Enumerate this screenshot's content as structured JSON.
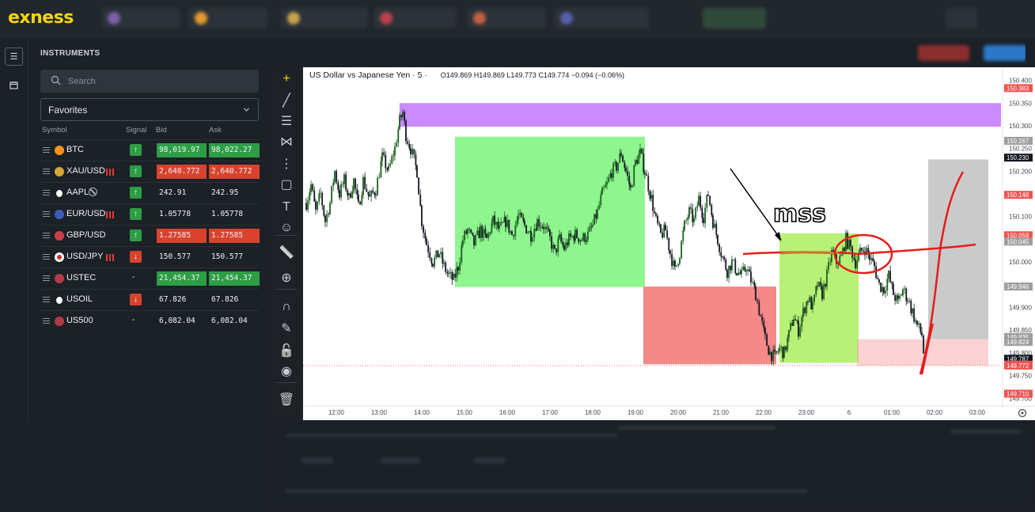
{
  "brand": {
    "logo_text": "exness",
    "logo_color": "#f5d50a"
  },
  "colors": {
    "up": "#26a69a",
    "down": "#ef5350",
    "green_cell": "#2e9e46",
    "red_cell": "#d9432e",
    "bg": "#1c2127"
  },
  "sidebar_strip": {
    "items": [
      "list-icon",
      "calendar-icon"
    ]
  },
  "instruments_panel": {
    "title": "INSTRUMENTS",
    "search": {
      "placeholder": "Search",
      "value": ""
    },
    "filter": {
      "selected": "Favorites"
    },
    "columns": {
      "symbol": "Symbol",
      "signal": "Signal",
      "bid": "Bid",
      "ask": "Ask"
    },
    "rows": [
      {
        "symbol": "BTC",
        "icon": "bitcoin-icon",
        "signal": "up",
        "signal_text": "↑",
        "bid": "98,019.97",
        "ask": "98,022.27",
        "bid_color": "green",
        "ask_color": "green",
        "flags": ""
      },
      {
        "symbol": "XAU/USD",
        "icon": "gold-icon",
        "signal": "up",
        "signal_text": "↑",
        "bid": "2,640.772",
        "ask": "2,640.772",
        "bid_color": "red",
        "ask_color": "red",
        "flags": "bars"
      },
      {
        "symbol": "AAPL",
        "icon": "apple-icon",
        "signal": "up",
        "signal_text": "↑",
        "bid": "242.91",
        "ask": "242.95",
        "bid_color": "none",
        "ask_color": "none",
        "flags": "closed"
      },
      {
        "symbol": "EUR/USD",
        "icon": "eurusd-icon",
        "signal": "up",
        "signal_text": "↑",
        "bid": "1.05778",
        "ask": "1.05778",
        "bid_color": "none",
        "ask_color": "none",
        "flags": "bars"
      },
      {
        "symbol": "GBP/USD",
        "icon": "gbpusd-icon",
        "signal": "up",
        "signal_text": "↑",
        "bid": "1.27585",
        "ask": "1.27585",
        "bid_color": "red",
        "ask_color": "red",
        "flags": ""
      },
      {
        "symbol": "USD/JPY",
        "icon": "usdjpy-icon",
        "signal": "down",
        "signal_text": "↓",
        "bid": "150.577",
        "ask": "150.577",
        "bid_color": "none",
        "ask_color": "none",
        "flags": "bars"
      },
      {
        "symbol": "USTEC",
        "icon": "us-flag-icon",
        "signal": "none",
        "signal_text": "-",
        "bid": "21,454.37",
        "ask": "21,454.37",
        "bid_color": "green",
        "ask_color": "green",
        "flags": ""
      },
      {
        "symbol": "USOIL",
        "icon": "oil-drop-icon",
        "signal": "down",
        "signal_text": "↓",
        "bid": "67.826",
        "ask": "67.826",
        "bid_color": "none",
        "ask_color": "none",
        "flags": ""
      },
      {
        "symbol": "US500",
        "icon": "us-flag-icon",
        "signal": "none",
        "signal_text": "-",
        "bid": "6,082.04",
        "ask": "6,082.04",
        "bid_color": "none",
        "ask_color": "none",
        "flags": ""
      }
    ]
  },
  "drawing_tools": [
    "crosshair-icon",
    "trend-line-icon",
    "fib-icon",
    "pattern-icon",
    "projection-icon",
    "brush-rect-icon",
    "text-icon",
    "emoji-icon",
    "ruler-icon",
    "zoom-in-icon",
    "magnet-icon",
    "lock-drawing-icon",
    "lock-icon",
    "eye-icon",
    "trash-icon"
  ],
  "chart": {
    "legend_title": "US Dollar vs Japanese Yen · 5 ·",
    "ohlc": "O149.869 H149.869 L149.773 C149.774 −0.094 (−0.06%)",
    "annotation_text": "mss",
    "settings_icon": "gear-icon"
  },
  "chart_data": {
    "type": "candlestick",
    "instrument": "USD/JPY",
    "timeframe": "5",
    "x_ticks": [
      "12:00",
      "13:00",
      "14:00",
      "15:00",
      "16:00",
      "17:00",
      "18:00",
      "19:00",
      "20:00",
      "21:00",
      "22:00",
      "23:00",
      "6",
      "01:00",
      "02:00",
      "03:00"
    ],
    "y_ticks": [
      "150.400",
      "150.350",
      "150.300",
      "150.250",
      "150.200",
      "150.150",
      "150.100",
      "150.050",
      "150.000",
      "149.950",
      "149.900",
      "149.850",
      "149.800",
      "149.750",
      "149.700"
    ],
    "y_range": [
      149.69,
      150.415
    ],
    "price_labels": [
      {
        "value": "150.383",
        "color": "#ef5350"
      },
      {
        "value": "150.267",
        "color": "#9e9e9e"
      },
      {
        "value": "150.230",
        "color": "#131722"
      },
      {
        "value": "150.148",
        "color": "#ef5350"
      },
      {
        "value": "150.059",
        "color": "#ef5350"
      },
      {
        "value": "150.045",
        "color": "#9e9e9e"
      },
      {
        "value": "149.946",
        "color": "#9e9e9e"
      },
      {
        "value": "149.835",
        "color": "#9e9e9e"
      },
      {
        "value": "149.824",
        "color": "#9e9e9e"
      },
      {
        "value": "149.787",
        "color": "#131722"
      },
      {
        "value": "149.774",
        "color": "#ef5350"
      },
      {
        "value": "149.772",
        "color": "#ef5350"
      },
      {
        "value": "149.710",
        "color": "#ef5350"
      }
    ],
    "path": [
      [
        0,
        150.13
      ],
      [
        6,
        150.17
      ],
      [
        12,
        150.11
      ],
      [
        18,
        150.15
      ],
      [
        24,
        150.09
      ],
      [
        30,
        150.13
      ],
      [
        36,
        150.2
      ],
      [
        42,
        150.15
      ],
      [
        48,
        150.18
      ],
      [
        54,
        150.14
      ],
      [
        60,
        150.18
      ],
      [
        66,
        150.12
      ],
      [
        72,
        150.18
      ],
      [
        80,
        150.14
      ],
      [
        88,
        150.16
      ],
      [
        96,
        150.23
      ],
      [
        104,
        150.2
      ],
      [
        112,
        150.25
      ],
      [
        118,
        150.31
      ],
      [
        122,
        150.33
      ],
      [
        126,
        150.28
      ],
      [
        132,
        150.25
      ],
      [
        140,
        150.2
      ],
      [
        146,
        150.09
      ],
      [
        152,
        150.04
      ],
      [
        160,
        150.0
      ],
      [
        168,
        150.02
      ],
      [
        174,
        149.99
      ],
      [
        180,
        149.97
      ],
      [
        186,
        149.96
      ],
      [
        192,
        149.99
      ],
      [
        198,
        150.05
      ],
      [
        204,
        150.07
      ],
      [
        212,
        150.04
      ],
      [
        220,
        150.07
      ],
      [
        228,
        150.05
      ],
      [
        236,
        150.09
      ],
      [
        244,
        150.07
      ],
      [
        252,
        150.09
      ],
      [
        260,
        150.06
      ],
      [
        268,
        150.1
      ],
      [
        276,
        150.08
      ],
      [
        284,
        150.06
      ],
      [
        292,
        150.09
      ],
      [
        300,
        150.08
      ],
      [
        308,
        150.05
      ],
      [
        314,
        150.02
      ],
      [
        320,
        150.05
      ],
      [
        326,
        150.03
      ],
      [
        332,
        150.05
      ],
      [
        340,
        150.06
      ],
      [
        348,
        150.05
      ],
      [
        356,
        150.06
      ],
      [
        362,
        150.08
      ],
      [
        368,
        150.11
      ],
      [
        374,
        150.15
      ],
      [
        380,
        150.17
      ],
      [
        386,
        150.2
      ],
      [
        392,
        150.21
      ],
      [
        398,
        150.24
      ],
      [
        404,
        150.2
      ],
      [
        410,
        150.16
      ],
      [
        416,
        150.22
      ],
      [
        422,
        150.24
      ],
      [
        428,
        150.2
      ],
      [
        436,
        150.14
      ],
      [
        442,
        150.09
      ],
      [
        448,
        150.06
      ],
      [
        454,
        150.07
      ],
      [
        460,
        150.02
      ],
      [
        466,
        149.98
      ],
      [
        472,
        150.02
      ],
      [
        478,
        150.08
      ],
      [
        484,
        150.11
      ],
      [
        490,
        150.09
      ],
      [
        496,
        150.14
      ],
      [
        502,
        150.1
      ],
      [
        508,
        150.15
      ],
      [
        514,
        150.09
      ],
      [
        520,
        150.05
      ],
      [
        526,
        150.01
      ],
      [
        532,
        149.98
      ],
      [
        538,
        150.0
      ],
      [
        544,
        149.98
      ],
      [
        550,
        149.97
      ],
      [
        556,
        149.99
      ],
      [
        562,
        149.96
      ],
      [
        568,
        149.93
      ],
      [
        574,
        149.88
      ],
      [
        580,
        149.83
      ],
      [
        586,
        149.8
      ],
      [
        592,
        149.79
      ],
      [
        598,
        149.81
      ],
      [
        604,
        149.8
      ],
      [
        610,
        149.84
      ],
      [
        616,
        149.88
      ],
      [
        622,
        149.85
      ],
      [
        628,
        149.89
      ],
      [
        634,
        149.92
      ],
      [
        640,
        149.9
      ],
      [
        646,
        149.95
      ],
      [
        652,
        149.93
      ],
      [
        658,
        149.97
      ],
      [
        664,
        150.02
      ],
      [
        670,
        150.0
      ],
      [
        676,
        150.01
      ],
      [
        682,
        150.05
      ],
      [
        688,
        150.03
      ],
      [
        694,
        150.0
      ],
      [
        700,
        150.02
      ],
      [
        706,
        150.03
      ],
      [
        712,
        150.01
      ],
      [
        718,
        149.99
      ],
      [
        724,
        149.95
      ],
      [
        730,
        149.94
      ],
      [
        736,
        149.97
      ],
      [
        742,
        149.93
      ],
      [
        748,
        149.91
      ],
      [
        754,
        149.94
      ],
      [
        760,
        149.92
      ],
      [
        766,
        149.89
      ],
      [
        772,
        149.86
      ],
      [
        778,
        149.84
      ],
      [
        782,
        149.77
      ]
    ]
  }
}
